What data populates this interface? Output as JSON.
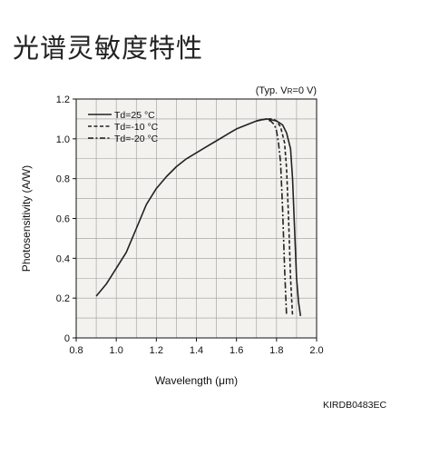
{
  "page": {
    "title": "光谱灵敏度特性",
    "doc_code": "KIRDB0483EC"
  },
  "chart_data": {
    "type": "line",
    "condition_prefix": "(Typ. V",
    "condition_sub": "R",
    "condition_suffix": "=0 V)",
    "xlabel": "Wavelength (μm)",
    "ylabel": "Photosensitivity (A/W)",
    "xlim": [
      0.8,
      2.0
    ],
    "ylim": [
      0,
      1.2
    ],
    "x_ticks": [
      "0.8",
      "1.0",
      "1.2",
      "1.4",
      "1.6",
      "1.8",
      "2.0"
    ],
    "y_ticks": [
      "0",
      "0.2",
      "0.4",
      "0.6",
      "0.8",
      "1.0",
      "1.2"
    ],
    "x_tick_values": [
      0.8,
      1.0,
      1.2,
      1.4,
      1.6,
      1.8,
      2.0
    ],
    "y_tick_values": [
      0,
      0.2,
      0.4,
      0.6,
      0.8,
      1.0,
      1.2
    ],
    "grid": true,
    "legend_position": "top-left",
    "plot_background": "#f3f2ee",
    "grid_color": "#9a9a9a",
    "line_color": "#222222",
    "series": [
      {
        "name": "Td=25 °C",
        "dash": "solid",
        "x": [
          0.9,
          0.95,
          1.0,
          1.05,
          1.1,
          1.15,
          1.2,
          1.25,
          1.3,
          1.35,
          1.4,
          1.45,
          1.5,
          1.55,
          1.6,
          1.65,
          1.7,
          1.75,
          1.8,
          1.83,
          1.85,
          1.87,
          1.88,
          1.89,
          1.9,
          1.91,
          1.92
        ],
        "values": [
          0.21,
          0.27,
          0.35,
          0.43,
          0.55,
          0.67,
          0.75,
          0.81,
          0.86,
          0.9,
          0.93,
          0.96,
          0.99,
          1.02,
          1.05,
          1.07,
          1.09,
          1.1,
          1.09,
          1.07,
          1.03,
          0.95,
          0.8,
          0.55,
          0.3,
          0.18,
          0.11
        ]
      },
      {
        "name": "Td=-10 °C",
        "dash": "dashed",
        "x": [
          1.7,
          1.75,
          1.78,
          1.8,
          1.82,
          1.84,
          1.85,
          1.86,
          1.87,
          1.88
        ],
        "values": [
          1.09,
          1.1,
          1.1,
          1.09,
          1.06,
          0.98,
          0.85,
          0.6,
          0.3,
          0.11
        ]
      },
      {
        "name": "Td=-20 °C",
        "dash": "dashdot",
        "x": [
          1.7,
          1.74,
          1.77,
          1.79,
          1.8,
          1.81,
          1.82,
          1.83,
          1.84,
          1.85
        ],
        "values": [
          1.09,
          1.1,
          1.09,
          1.07,
          1.04,
          0.98,
          0.88,
          0.65,
          0.35,
          0.11
        ]
      }
    ]
  }
}
